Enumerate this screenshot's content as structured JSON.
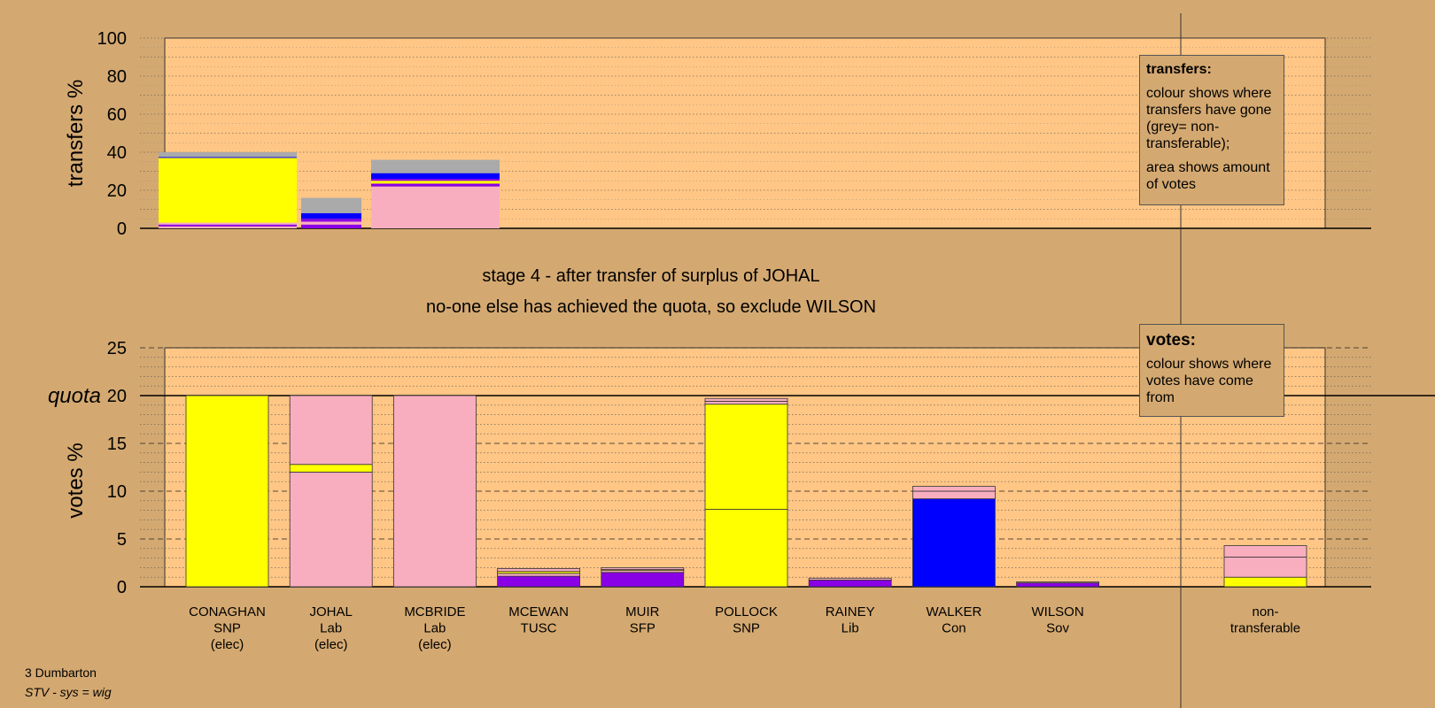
{
  "chart_data": [
    {
      "type": "bar",
      "stacked": true,
      "panel": "transfers",
      "ylabel": "transfers %",
      "ylim": [
        0,
        100
      ],
      "yticks": [
        0,
        20,
        40,
        60,
        80,
        100
      ],
      "categories": [
        "CONAGHAN",
        "JOHAL",
        "MCBRIDE"
      ],
      "segments": [
        [
          {
            "color": "#f9aec0",
            "value": 1
          },
          {
            "color": "#8a00e6",
            "value": 1
          },
          {
            "color": "#f9aec0",
            "value": 1
          },
          {
            "color": "#ffff00",
            "value": 34
          },
          {
            "color": "#0000ff",
            "value": 0.5
          },
          {
            "color": "#aaaaaa",
            "value": 2.5
          }
        ],
        [
          {
            "color": "#8a00e6",
            "value": 2
          },
          {
            "color": "#f9aec0",
            "value": 1.5
          },
          {
            "color": "#8a00e6",
            "value": 1.5
          },
          {
            "color": "#0000ff",
            "value": 3
          },
          {
            "color": "#aaaaaa",
            "value": 8
          }
        ],
        [
          {
            "color": "#f9aec0",
            "value": 22
          },
          {
            "color": "#8a00e6",
            "value": 1.5
          },
          {
            "color": "#ffff00",
            "value": 1.5
          },
          {
            "color": "#8a00e6",
            "value": 1
          },
          {
            "color": "#0000ff",
            "value": 3
          },
          {
            "color": "#aaaaaa",
            "value": 7
          }
        ]
      ]
    },
    {
      "type": "bar",
      "stacked": true,
      "panel": "votes",
      "ylabel": "votes %",
      "ylim": [
        0,
        25
      ],
      "yticks": [
        0,
        5,
        10,
        15,
        20,
        25
      ],
      "quota": 20,
      "quota_label": "quota",
      "categories": [
        "CONAGHAN",
        "JOHAL",
        "MCBRIDE",
        "MCEWAN",
        "MUIR",
        "POLLOCK",
        "RAINEY",
        "WALKER",
        "WILSON",
        "",
        "non-transferable"
      ],
      "category_labels": [
        [
          "CONAGHAN",
          "SNP",
          "(elec)"
        ],
        [
          "JOHAL",
          "Lab",
          "(elec)"
        ],
        [
          "MCBRIDE",
          "Lab",
          "(elec)"
        ],
        [
          "MCEWAN",
          "TUSC"
        ],
        [
          "MUIR",
          "SFP"
        ],
        [
          "POLLOCK",
          "SNP"
        ],
        [
          "RAINEY",
          "Lib"
        ],
        [
          "WALKER",
          "Con"
        ],
        [
          "WILSON",
          "Sov"
        ],
        [],
        [
          "non-",
          "transferable"
        ]
      ],
      "segments": [
        [
          {
            "color": "#ffff00",
            "value": 20
          }
        ],
        [
          {
            "color": "#f9aec0",
            "value": 12
          },
          {
            "color": "#ffff00",
            "value": 0.8
          },
          {
            "color": "#f9aec0",
            "value": 7.2
          }
        ],
        [
          {
            "color": "#f9aec0",
            "value": 20
          }
        ],
        [
          {
            "color": "#8a00e6",
            "value": 1.1
          },
          {
            "color": "#f9aec0",
            "value": 0.3
          },
          {
            "color": "#ffff00",
            "value": 0.2
          },
          {
            "color": "#f9aec0",
            "value": 0.3
          }
        ],
        [
          {
            "color": "#8a00e6",
            "value": 1.5
          },
          {
            "color": "#f9aec0",
            "value": 0.2
          },
          {
            "color": "#ffff00",
            "value": 0.1
          },
          {
            "color": "#f9aec0",
            "value": 0.2
          }
        ],
        [
          {
            "color": "#ffff00",
            "value": 8.1
          },
          {
            "color": "#ffff00",
            "value": 11
          },
          {
            "color": "#f9aec0",
            "value": 0.3
          },
          {
            "color": "#f9aec0",
            "value": 0.3
          }
        ],
        [
          {
            "color": "#8a00e6",
            "value": 0.7
          },
          {
            "color": "#f9aec0",
            "value": 0.2
          }
        ],
        [
          {
            "color": "#0000ff",
            "value": 9.2
          },
          {
            "color": "#f9aec0",
            "value": 0.8
          },
          {
            "color": "#f9aec0",
            "value": 0.5
          }
        ],
        [
          {
            "color": "#8a00e6",
            "value": 0.4
          },
          {
            "color": "#f9aec0",
            "value": 0.1
          }
        ],
        [],
        [
          {
            "color": "#ffff00",
            "value": 1
          },
          {
            "color": "#f9aec0",
            "value": 2.1
          },
          {
            "color": "#f9aec0",
            "value": 1.2
          }
        ]
      ]
    }
  ],
  "headline": {
    "line1": "stage 4 - after transfer of surplus of JOHAL",
    "line2": "no-one else has achieved the quota, so exclude WILSON"
  },
  "legend_transfers": {
    "title": "transfers:",
    "text1": "colour shows where transfers have gone (grey= non-transferable);",
    "text2": "area shows amount of votes"
  },
  "legend_votes": {
    "title": "votes:",
    "text1": "colour shows where votes have come from"
  },
  "footer": {
    "constituency": "3 Dumbarton",
    "system": "STV - sys = wig"
  },
  "colors": {
    "background": "#d4a971",
    "plot_area": "#ffc685",
    "snp": "#ffff00",
    "lab": "#f9aec0",
    "con": "#0000ff",
    "other": "#8a00e6",
    "nontransferable": "#aaaaaa"
  }
}
